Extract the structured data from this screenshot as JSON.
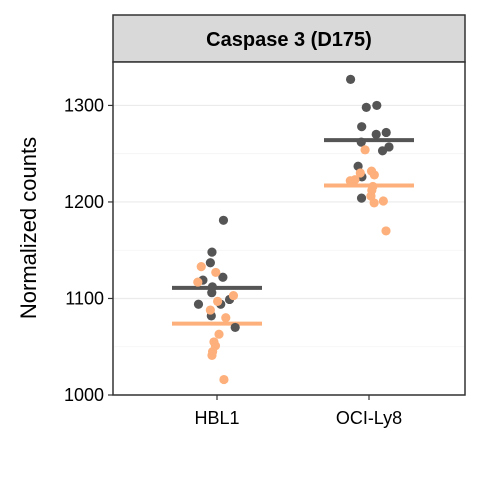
{
  "chart_data": {
    "type": "scatter",
    "title": "Caspase 3 (D175)",
    "xlabel": "",
    "ylabel": "Normalized counts",
    "categories": [
      "HBL1",
      "OCI-Ly8"
    ],
    "ylim": [
      1000,
      1345
    ],
    "yticks": [
      1000,
      1100,
      1200,
      1300
    ],
    "grid": true,
    "legend": "none",
    "series": [
      {
        "color": "#555555",
        "median": {
          "HBL1": 1111,
          "OCI-Ly8": 1264
        },
        "points": {
          "HBL1": [
            1181,
            1148,
            1137,
            1122,
            1119,
            1112,
            1106,
            1099,
            1094,
            1094,
            1082,
            1070
          ],
          "OCI-Ly8": [
            1327,
            1300,
            1298,
            1278,
            1272,
            1270,
            1262,
            1257,
            1253,
            1237,
            1226,
            1204
          ]
        }
      },
      {
        "color": "#FDB07B",
        "median": {
          "HBL1": 1074,
          "OCI-Ly8": 1217
        },
        "points": {
          "HBL1": [
            1133,
            1127,
            1117,
            1103,
            1097,
            1088,
            1080,
            1063,
            1055,
            1051,
            1045,
            1041,
            1016
          ],
          "OCI-Ly8": [
            1254,
            1232,
            1230,
            1228,
            1223,
            1222,
            1216,
            1212,
            1206,
            1201,
            1199,
            1170
          ]
        }
      }
    ]
  }
}
